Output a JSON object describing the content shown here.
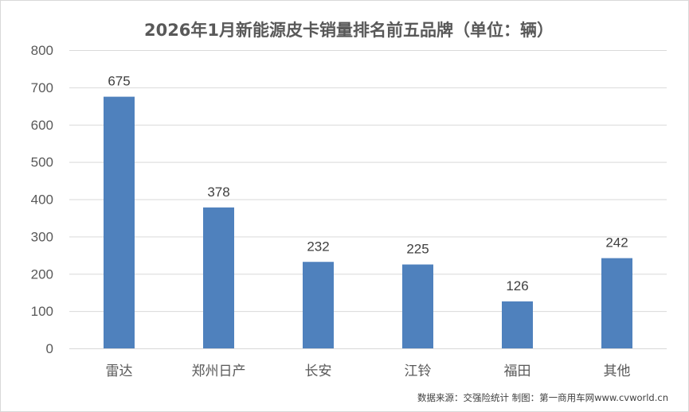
{
  "chart_data": {
    "type": "bar",
    "title": "2026年1月新能源皮卡销量排名前五品牌（单位：辆）",
    "categories": [
      "雷达",
      "郑州日产",
      "长安",
      "江铃",
      "福田",
      "其他"
    ],
    "values": [
      675,
      378,
      232,
      225,
      126,
      242
    ],
    "data_labels": [
      "675",
      "378",
      "232",
      "225",
      "126",
      "242"
    ],
    "y_ticks": [
      "0",
      "100",
      "200",
      "300",
      "400",
      "500",
      "600",
      "700",
      "800"
    ],
    "ylim": [
      0,
      800
    ],
    "grid": true,
    "legend": "none",
    "bar_color": "#4f81bd"
  },
  "source_note": "数据来源：交强险统计  制图：第一商用车网www.cvworld.cn"
}
